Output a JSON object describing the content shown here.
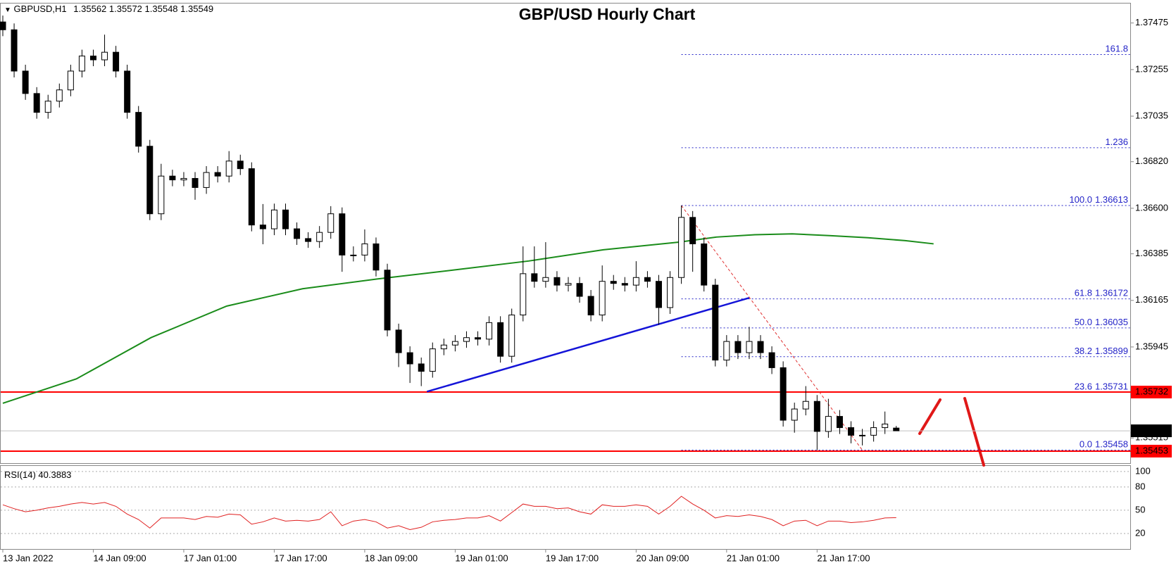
{
  "chart_data": {
    "type": "candlestick",
    "title": "GBP/USD Hourly Chart",
    "symbol": "GBPUSD,H1",
    "x_labels": [
      {
        "value": 0,
        "label": "13 Jan 2022"
      },
      {
        "value": 8,
        "label": "14 Jan 09:00"
      },
      {
        "value": 16,
        "label": "17 Jan 01:00"
      },
      {
        "value": 24,
        "label": "17 Jan 17:00"
      },
      {
        "value": 32,
        "label": "18 Jan 09:00"
      },
      {
        "value": 40,
        "label": "19 Jan 01:00"
      },
      {
        "value": 48,
        "label": "19 Jan 17:00"
      },
      {
        "value": 56,
        "label": "20 Jan 09:00"
      },
      {
        "value": 64,
        "label": "21 Jan 01:00"
      },
      {
        "value": 72,
        "label": "21 Jan 17:00"
      }
    ],
    "open": [
      1.3748,
      1.37443,
      1.37248,
      1.37142,
      1.37053,
      1.37106,
      1.37159,
      1.37248,
      1.37319,
      1.37301,
      1.37337,
      1.37248,
      1.37053,
      1.36893,
      1.36574,
      1.36752,
      1.36734,
      1.36741,
      1.36698,
      1.36769,
      1.36752,
      1.36823,
      1.36787,
      1.36521,
      1.36503,
      1.36592,
      1.36503,
      1.36457,
      1.36443,
      1.36486,
      1.36574,
      1.36379,
      1.36379,
      1.36432,
      1.36308,
      1.36025,
      1.35918,
      1.35865,
      1.3583,
      1.35936,
      1.35954,
      1.35971,
      1.35989,
      1.35982,
      1.3606,
      1.35901,
      1.36096,
      1.36291,
      1.36255,
      1.36273,
      1.36237,
      1.36245,
      1.36184,
      1.36096,
      1.36255,
      1.36245,
      1.36237,
      1.36273,
      1.36255,
      1.36131,
      1.36273,
      1.36557,
      1.36432,
      1.36237,
      1.35883,
      1.35971,
      1.35918,
      1.35971,
      1.35918,
      1.35847,
      1.35599,
      1.35652,
      1.35688,
      1.35546,
      1.35617,
      1.35564,
      1.35528,
      1.35528,
      1.35564,
      1.35562
    ],
    "high": [
      1.3751,
      1.37473,
      1.37278,
      1.37172,
      1.37136,
      1.37189,
      1.37278,
      1.37349,
      1.37349,
      1.3742,
      1.37367,
      1.37278,
      1.37083,
      1.36923,
      1.3681,
      1.36782,
      1.36771,
      1.36771,
      1.36799,
      1.36799,
      1.3687,
      1.36853,
      1.36817,
      1.3662,
      1.36622,
      1.36622,
      1.36533,
      1.36487,
      1.36516,
      1.3661,
      1.36604,
      1.3642,
      1.365,
      1.36462,
      1.36338,
      1.36055,
      1.35948,
      1.35895,
      1.35966,
      1.35984,
      1.36001,
      1.36019,
      1.36019,
      1.3609,
      1.3609,
      1.36126,
      1.3642,
      1.3642,
      1.3644,
      1.36303,
      1.36275,
      1.36275,
      1.36214,
      1.3633,
      1.36285,
      1.36275,
      1.3635,
      1.36303,
      1.36285,
      1.36303,
      1.36613,
      1.36587,
      1.36462,
      1.36267,
      1.36001,
      1.36001,
      1.3604,
      1.36001,
      1.35948,
      1.35877,
      1.35682,
      1.3576,
      1.35718,
      1.357,
      1.35647,
      1.35594,
      1.35558,
      1.35594,
      1.3564,
      1.35572
    ],
    "low": [
      1.37413,
      1.37218,
      1.37112,
      1.37023,
      1.37023,
      1.37076,
      1.37129,
      1.37218,
      1.37271,
      1.37271,
      1.37218,
      1.37023,
      1.36863,
      1.36544,
      1.36544,
      1.36704,
      1.36704,
      1.3664,
      1.36668,
      1.36722,
      1.36722,
      1.36757,
      1.36491,
      1.3643,
      1.36473,
      1.36473,
      1.36427,
      1.36413,
      1.36413,
      1.36456,
      1.363,
      1.36349,
      1.36349,
      1.36278,
      1.35995,
      1.3585,
      1.35775,
      1.3576,
      1.358,
      1.35906,
      1.35924,
      1.35941,
      1.35952,
      1.35952,
      1.35871,
      1.35871,
      1.36066,
      1.36225,
      1.36225,
      1.36207,
      1.36207,
      1.36154,
      1.36066,
      1.36066,
      1.36215,
      1.36207,
      1.36207,
      1.36225,
      1.3605,
      1.36101,
      1.36243,
      1.363,
      1.36207,
      1.35853,
      1.35853,
      1.35888,
      1.35888,
      1.35888,
      1.35817,
      1.35569,
      1.3554,
      1.35622,
      1.35458,
      1.35516,
      1.35534,
      1.3549,
      1.3548,
      1.35498,
      1.35534,
      1.35548
    ],
    "close": [
      1.37443,
      1.37248,
      1.37142,
      1.37053,
      1.37106,
      1.37159,
      1.37248,
      1.37319,
      1.37301,
      1.37337,
      1.37248,
      1.37053,
      1.36893,
      1.36574,
      1.36752,
      1.36734,
      1.36741,
      1.36698,
      1.36769,
      1.36752,
      1.36823,
      1.36787,
      1.36521,
      1.36503,
      1.36592,
      1.36503,
      1.36457,
      1.36443,
      1.36486,
      1.36574,
      1.36379,
      1.36379,
      1.36432,
      1.36308,
      1.36025,
      1.35918,
      1.35865,
      1.3583,
      1.35936,
      1.35954,
      1.35971,
      1.35989,
      1.35982,
      1.3606,
      1.35901,
      1.36096,
      1.36291,
      1.36255,
      1.36273,
      1.36237,
      1.36245,
      1.36184,
      1.36096,
      1.36255,
      1.36245,
      1.36237,
      1.36273,
      1.36255,
      1.36131,
      1.36273,
      1.36557,
      1.36432,
      1.36237,
      1.35883,
      1.35971,
      1.35918,
      1.35971,
      1.35918,
      1.35847,
      1.35599,
      1.35652,
      1.35688,
      1.35546,
      1.35617,
      1.35564,
      1.35528,
      1.35528,
      1.35564,
      1.35581,
      1.35549
    ],
    "ylim": [
      1.35393,
      1.37567
    ],
    "yticks": [
      1.37475,
      1.37255,
      1.37035,
      {
        "value": 1.3682,
        "label": "1.36820"
      },
      {
        "value": 1.366,
        "label": "1.36600"
      },
      1.36385,
      1.36165,
      1.35945,
      1.35515
    ],
    "ma": {
      "color": "#1a8c1a",
      "x": [
        0,
        6.5,
        13.1,
        19.8,
        26.5,
        33.1,
        39.8,
        46.5,
        53.1,
        59.8,
        63.1,
        66.5,
        69.8,
        73.1,
        76.5,
        79.8,
        82.3
      ],
      "values": [
        1.35679,
        1.35794,
        1.35989,
        1.36138,
        1.3622,
        1.36266,
        1.36308,
        1.36351,
        1.36404,
        1.3644,
        1.36464,
        1.36475,
        1.36479,
        1.36471,
        1.36461,
        1.36447,
        1.36432
      ]
    },
    "trendline": {
      "color": "#1414d8",
      "x": [
        37.5,
        66
      ],
      "values": [
        1.35734,
        1.36177
      ]
    },
    "fib_line": {
      "color": "#e03030",
      "x": [
        60,
        76
      ],
      "values": [
        1.36613,
        1.35458
      ]
    },
    "fib_color": "#2424c8",
    "fib_levels": [
      {
        "level": "161.8",
        "value": 1.37326
      },
      {
        "level": "1.236",
        "value": 1.36886
      },
      {
        "level": "100.0",
        "price": 1.36613
      },
      {
        "level": "61.8",
        "price": 1.36172
      },
      {
        "level": "50.0",
        "price": 1.36035
      },
      {
        "level": "38.2",
        "price": 1.35899
      },
      {
        "level": "23.6",
        "price": 1.35731
      },
      {
        "level": "0.0",
        "price": 1.35458
      }
    ],
    "levels": [
      {
        "value": 1.35732,
        "color": "#ff0000"
      },
      {
        "value": 1.35453,
        "color": "#ff0000"
      }
    ],
    "rsi": {
      "label": "RSI(14)",
      "color": "#e02020",
      "ylim": [
        0,
        108
      ],
      "yticks": [
        100,
        80,
        50,
        20
      ],
      "values": [
        57,
        52,
        48,
        50,
        53,
        55,
        58,
        60,
        58,
        60,
        55,
        45,
        38,
        27,
        40,
        40,
        40,
        38,
        42,
        41,
        45,
        44,
        32,
        35,
        40,
        36,
        37,
        36,
        38,
        48,
        30,
        36,
        38,
        35,
        27,
        30,
        25,
        28,
        35,
        37,
        38,
        40,
        40,
        43,
        36,
        47,
        58,
        55,
        55,
        52,
        53,
        48,
        45,
        57,
        55,
        55,
        57,
        55,
        45,
        55,
        68,
        58,
        50,
        40,
        43,
        42,
        44,
        42,
        38,
        30,
        36,
        37,
        30,
        36,
        36,
        34,
        35,
        37,
        40,
        40.3883
      ]
    }
  }
}
